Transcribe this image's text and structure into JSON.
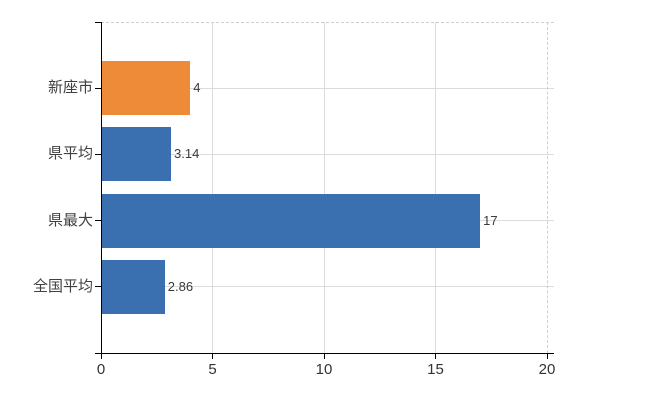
{
  "chart_data": {
    "type": "bar",
    "orientation": "horizontal",
    "title": "",
    "xlabel": "",
    "ylabel": "",
    "categories": [
      "新座市",
      "県平均",
      "県最大",
      "全国平均"
    ],
    "values": [
      4,
      3.14,
      17,
      2.86
    ],
    "value_labels": [
      "4",
      "3.14",
      "17",
      "2.86"
    ],
    "bar_colors": [
      "#ED8B38",
      "#3A6FB0",
      "#3A6FB0",
      "#3A6FB0"
    ],
    "xlim": [
      0,
      20
    ],
    "x_ticks": [
      0,
      5,
      10,
      15,
      20
    ],
    "x_tick_labels": [
      "0",
      "5",
      "10",
      "15",
      "20"
    ],
    "grid": true,
    "legend": "none",
    "colors": {
      "highlight_bar": "#ED8B38",
      "default_bar": "#3A6FB0",
      "gridline": "#DCDCDC",
      "plot_border_dashed": "#D6CDCD",
      "axis": "#000000",
      "tick_text": "#333333",
      "category_text": "#404040",
      "value_text": "#3B3B3B",
      "background": "#FFFFFF"
    }
  }
}
